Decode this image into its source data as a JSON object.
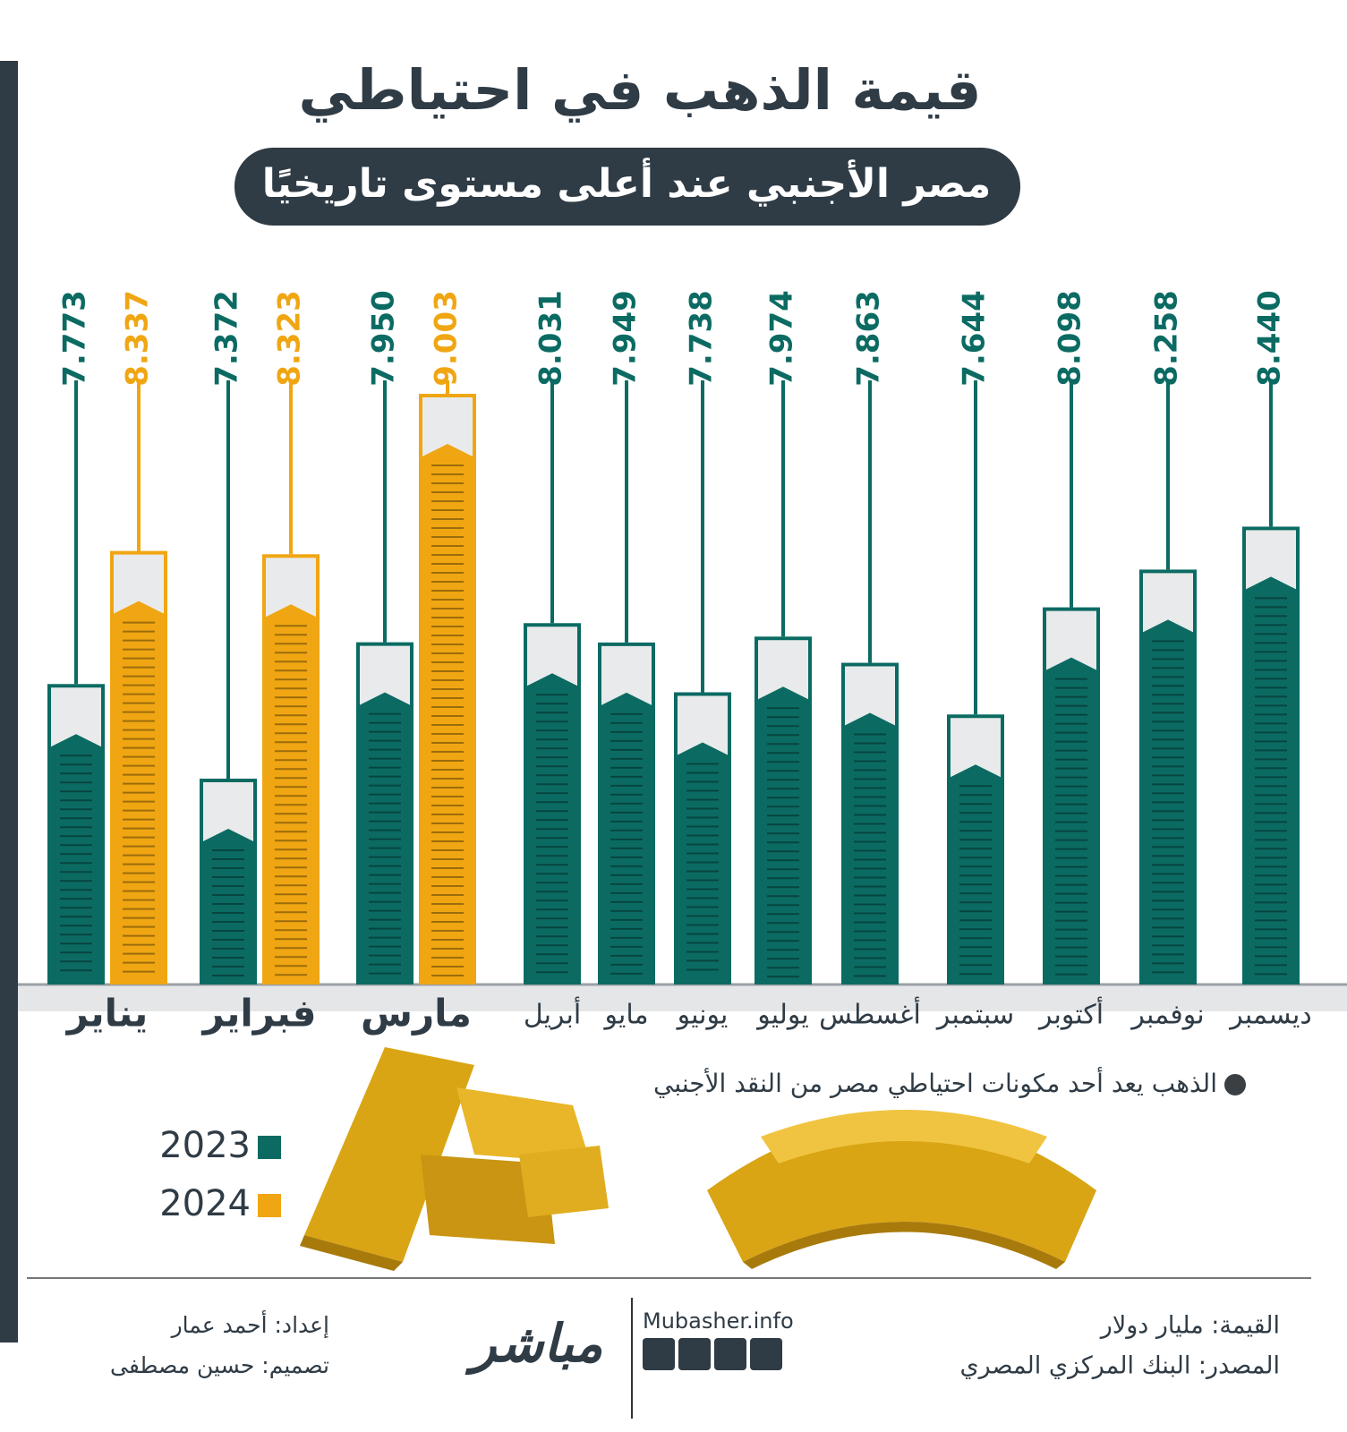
{
  "chart_data": {
    "type": "bar",
    "title": "قيمة الذهب في احتياطي",
    "subtitle": "مصر الأجنبي عند أعلى مستوى تاريخيًا",
    "categories": [
      "يناير",
      "فبراير",
      "مارس",
      "أبريل",
      "مايو",
      "يونيو",
      "يوليو",
      "أغسطس",
      "سبتمبر",
      "أكتوبر",
      "نوفمبر",
      "ديسمبر"
    ],
    "series": [
      {
        "name": "2023",
        "color": "#0b6b63",
        "values": [
          7.773,
          7.372,
          7.95,
          8.031,
          7.949,
          7.738,
          7.974,
          7.863,
          7.644,
          8.098,
          8.258,
          8.44
        ],
        "value_labels": [
          "7.773",
          "7.372",
          "7.950",
          "8.031",
          "7.949",
          "7.738",
          "7.974",
          "7.863",
          "7.644",
          "8.098",
          "8.258",
          "8.440"
        ]
      },
      {
        "name": "2024",
        "color": "#f0a612",
        "values": [
          8.337,
          8.323,
          9.003,
          null,
          null,
          null,
          null,
          null,
          null,
          null,
          null,
          null
        ],
        "value_labels": [
          "8.337",
          "8.323",
          "9.003",
          null,
          null,
          null,
          null,
          null,
          null,
          null,
          null,
          null
        ]
      }
    ],
    "annotation": "الذهب يعد أحد مكونات احتياطي مصر من النقد الأجنبي",
    "unit_note": "القيمة: مليار دولار",
    "source": "المصدر: البنك المركزي المصري",
    "credits": [
      "إعداد: أحمد عمار",
      "تصميم: حسين مصطفى"
    ],
    "brand": "مباشر",
    "website": "Mubasher.info"
  }
}
